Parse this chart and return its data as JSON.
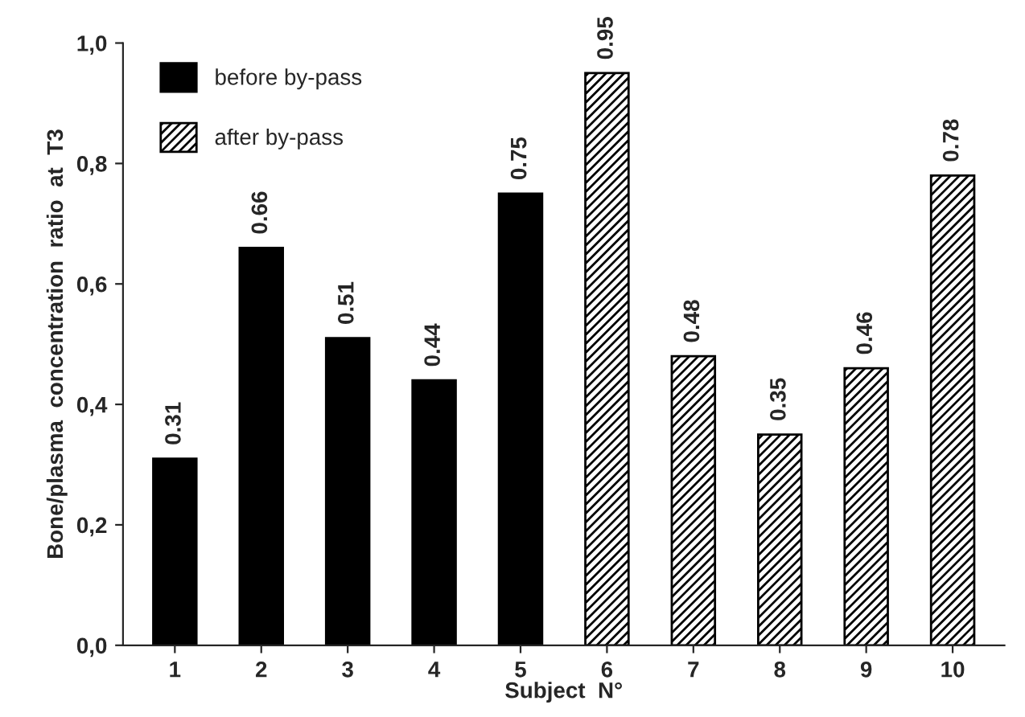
{
  "chart_data": {
    "type": "bar",
    "xlabel": "Subject  N°",
    "ylabel": "Bone/plasma  concentration  ratio  at  T3",
    "categories": [
      "1",
      "2",
      "3",
      "4",
      "5",
      "6",
      "7",
      "8",
      "9",
      "10"
    ],
    "series": [
      {
        "name": "before by-pass",
        "color": "#000000",
        "values": [
          0.31,
          0.66,
          0.51,
          0.44,
          0.75,
          null,
          null,
          null,
          null,
          null
        ]
      },
      {
        "name": "after by-pass",
        "color": "#000000",
        "values": [
          null,
          null,
          null,
          null,
          null,
          0.95,
          0.48,
          0.35,
          0.46,
          0.78
        ]
      }
    ],
    "ylim": [
      0,
      1.0
    ],
    "yticks": [
      {
        "value": 0,
        "label": "0,0"
      },
      {
        "value": 0.2,
        "label": "0,2"
      },
      {
        "value": 0.4,
        "label": "0,4"
      },
      {
        "value": 0.6,
        "label": "0,6"
      },
      {
        "value": 0.8,
        "label": "0,8"
      },
      {
        "value": 1.0,
        "label": "1,0"
      }
    ],
    "data_labels": true,
    "grid": false,
    "legend": "top left"
  }
}
